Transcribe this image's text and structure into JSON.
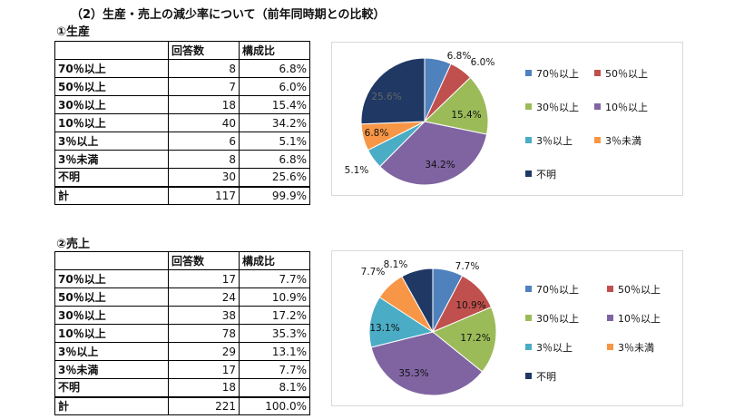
{
  "section_title": "（2）生産・売上の減少率について（前年同時期との比較）",
  "production": {
    "title": "①生産",
    "header": [
      "",
      "回答数",
      "構成比"
    ],
    "rows": [
      {
        "label": "70％以上",
        "count": "8",
        "ratio": "6.8%"
      },
      {
        "label": "50％以上",
        "count": "7",
        "ratio": "6.0%"
      },
      {
        "label": "30％以上",
        "count": "18",
        "ratio": "15.4%"
      },
      {
        "label": "10％以上",
        "count": "40",
        "ratio": "34.2%"
      },
      {
        "label": "3％以上",
        "count": "6",
        "ratio": "5.1%"
      },
      {
        "label": "3％未満",
        "count": "8",
        "ratio": "6.8%"
      },
      {
        "label": "不明",
        "count": "30",
        "ratio": "25.6%"
      }
    ],
    "total": {
      "label": "計",
      "count": "117",
      "ratio": "99.9%"
    }
  },
  "sales": {
    "title": "②売上",
    "header": [
      "",
      "回答数",
      "構成比"
    ],
    "rows": [
      {
        "label": "70％以上",
        "count": "17",
        "ratio": "7.7%"
      },
      {
        "label": "50％以上",
        "count": "24",
        "ratio": "10.9%"
      },
      {
        "label": "30％以上",
        "count": "38",
        "ratio": "17.2%"
      },
      {
        "label": "10％以上",
        "count": "78",
        "ratio": "35.3%"
      },
      {
        "label": "3％以上",
        "count": "29",
        "ratio": "13.1%"
      },
      {
        "label": "3％未満",
        "count": "17",
        "ratio": "7.7%"
      },
      {
        "label": "不明",
        "count": "18",
        "ratio": "8.1%"
      }
    ],
    "total": {
      "label": "計",
      "count": "221",
      "ratio": "100.0%"
    }
  },
  "chart_data": [
    {
      "type": "pie",
      "categories": [
        "70％以上",
        "50％以上",
        "30％以上",
        "10％以上",
        "3％以上",
        "3％未満",
        "不明"
      ],
      "values": [
        6.8,
        6.0,
        15.4,
        34.2,
        5.1,
        6.8,
        25.6
      ],
      "data_labels": [
        "6.8%",
        "6.0%",
        "15.4%",
        "34.2%",
        "5.1%",
        "6.8%",
        "25.6%"
      ],
      "colors": [
        "#4f81bd",
        "#c0504d",
        "#9bbb59",
        "#8064a2",
        "#4bacc6",
        "#f79646",
        "#1f3864"
      ],
      "legend": "right"
    },
    {
      "type": "pie",
      "categories": [
        "70％以上",
        "50％以上",
        "30％以上",
        "10％以上",
        "3％以上",
        "3％未満",
        "不明"
      ],
      "values": [
        7.7,
        10.9,
        17.2,
        35.3,
        13.1,
        7.7,
        8.1
      ],
      "data_labels": [
        "7.7%",
        "10.9%",
        "17.2%",
        "35.3%",
        "13.1%",
        "7.7%",
        "8.1%"
      ],
      "colors": [
        "#4f81bd",
        "#c0504d",
        "#9bbb59",
        "#8064a2",
        "#4bacc6",
        "#f79646",
        "#1f3864"
      ],
      "legend": "right"
    }
  ]
}
